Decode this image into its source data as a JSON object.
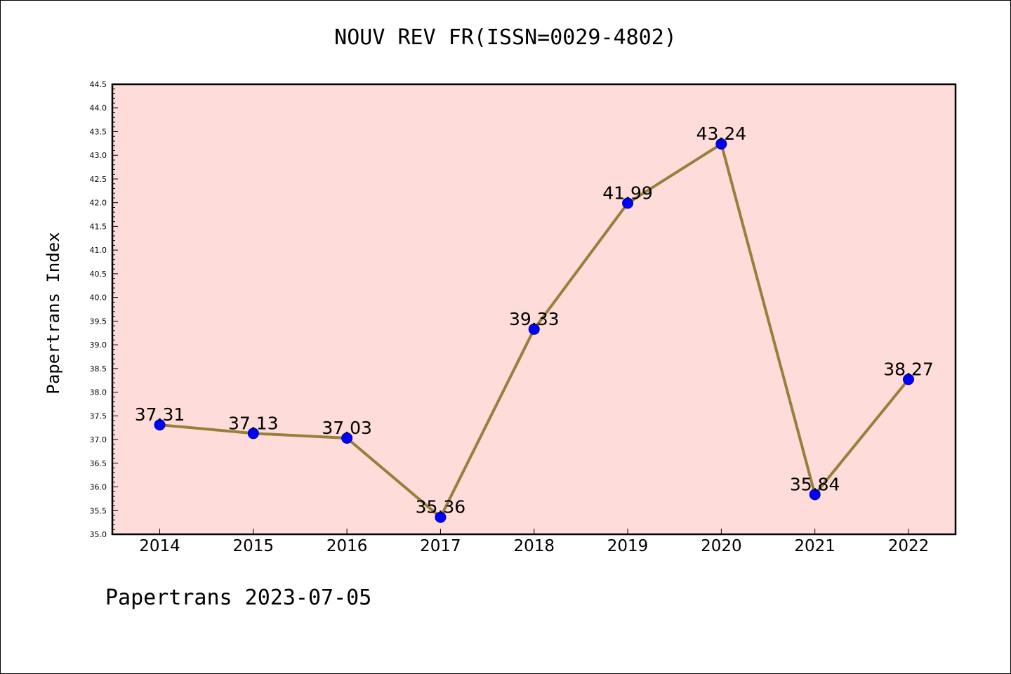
{
  "chart_data": {
    "type": "line",
    "title": "NOUV REV FR(ISSN=0029-4802)",
    "ylabel": "Papertrans Index",
    "xlabel": "",
    "footer": "Papertrans 2023-07-05",
    "categories": [
      "2014",
      "2015",
      "2016",
      "2017",
      "2018",
      "2019",
      "2020",
      "2021",
      "2022"
    ],
    "series": [
      {
        "values": [
          37.31,
          37.13,
          37.03,
          35.36,
          39.33,
          41.99,
          43.24,
          35.84,
          38.27
        ],
        "labels": [
          "37.31",
          "37.13",
          "37.03",
          "35.36",
          "39.33",
          "41.99",
          "43.24",
          "35.84",
          "38.27"
        ],
        "line_color": "#9a7f3c",
        "marker_color": "#0000ff"
      }
    ],
    "ylim": [
      35.0,
      44.5
    ],
    "yticks": [
      "35.0",
      "35.5",
      "36.0",
      "36.5",
      "37.0",
      "37.5",
      "38.0",
      "38.5",
      "39.0",
      "39.5",
      "40.0",
      "40.5",
      "41.0",
      "41.5",
      "42.0",
      "42.5",
      "43.0",
      "43.5",
      "44.0",
      "44.5"
    ],
    "plot_background": "#fddcd9",
    "grid": false,
    "legend": "none"
  }
}
